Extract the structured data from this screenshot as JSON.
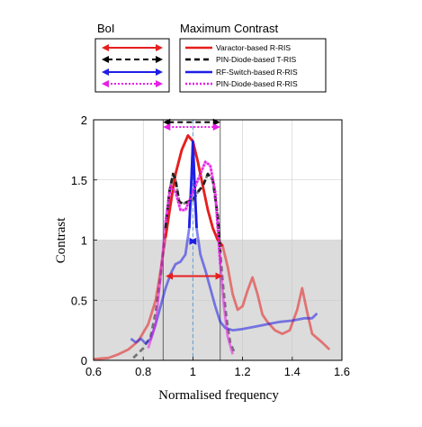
{
  "chart_data": {
    "type": "line",
    "xlabel": "Normalised frequency",
    "ylabel": "Contrast",
    "xlim": [
      0.6,
      1.6
    ],
    "ylim": [
      0,
      2
    ],
    "xticks": [
      "0.6",
      "0.8",
      "1",
      "1.2",
      "1.4",
      "1.6"
    ],
    "yticks": [
      "0",
      "0.5",
      "1",
      "1.5",
      "2"
    ],
    "grid": true,
    "shaded_region": {
      "y_from": 0,
      "y_to": 1,
      "color": "#dcdcdc"
    },
    "center_line": {
      "x": 1.0,
      "color": "#5b9bd5"
    },
    "series": [
      {
        "name": "Varactor-based R-RIS",
        "color": "#e61e1e",
        "points": [
          [
            0.6,
            0.01
          ],
          [
            0.66,
            0.02
          ],
          [
            0.7,
            0.05
          ],
          [
            0.74,
            0.09
          ],
          [
            0.78,
            0.16
          ],
          [
            0.82,
            0.3
          ],
          [
            0.85,
            0.5
          ],
          [
            0.87,
            0.75
          ],
          [
            0.89,
            1.02
          ],
          [
            0.91,
            1.3
          ],
          [
            0.93,
            1.55
          ],
          [
            0.955,
            1.75
          ],
          [
            0.98,
            1.87
          ],
          [
            1.0,
            1.82
          ],
          [
            1.02,
            1.65
          ],
          [
            1.04,
            1.45
          ],
          [
            1.06,
            1.25
          ],
          [
            1.08,
            1.1
          ],
          [
            1.1,
            1.0
          ],
          [
            1.12,
            0.95
          ],
          [
            1.14,
            0.78
          ],
          [
            1.16,
            0.55
          ],
          [
            1.18,
            0.42
          ],
          [
            1.2,
            0.45
          ],
          [
            1.22,
            0.58
          ],
          [
            1.24,
            0.69
          ],
          [
            1.26,
            0.55
          ],
          [
            1.28,
            0.38
          ],
          [
            1.3,
            0.32
          ],
          [
            1.33,
            0.25
          ],
          [
            1.36,
            0.22
          ],
          [
            1.39,
            0.25
          ],
          [
            1.42,
            0.42
          ],
          [
            1.44,
            0.6
          ],
          [
            1.46,
            0.4
          ],
          [
            1.48,
            0.22
          ],
          [
            1.52,
            0.15
          ],
          [
            1.55,
            0.09
          ]
        ],
        "highlight_range": [
          0.89,
          1.12
        ]
      },
      {
        "name": "PIN-Diode-based T-RIS",
        "color": "#222222",
        "points": [
          [
            0.76,
            0.02
          ],
          [
            0.8,
            0.1
          ],
          [
            0.83,
            0.2
          ],
          [
            0.85,
            0.4
          ],
          [
            0.87,
            0.7
          ],
          [
            0.89,
            1.1
          ],
          [
            0.905,
            1.4
          ],
          [
            0.92,
            1.55
          ],
          [
            0.93,
            1.5
          ],
          [
            0.945,
            1.32
          ],
          [
            0.96,
            1.3
          ],
          [
            0.98,
            1.32
          ],
          [
            1.0,
            1.33
          ],
          [
            1.02,
            1.4
          ],
          [
            1.04,
            1.45
          ],
          [
            1.06,
            1.55
          ],
          [
            1.08,
            1.5
          ],
          [
            1.1,
            1.2
          ],
          [
            1.11,
            0.9
          ],
          [
            1.12,
            0.65
          ],
          [
            1.135,
            0.35
          ],
          [
            1.15,
            0.15
          ],
          [
            1.17,
            0.05
          ]
        ],
        "highlight_range": [
          0.89,
          1.11
        ]
      },
      {
        "name": "RF-Switch-based R-RIS",
        "color": "#1e1ee6",
        "points": [
          [
            0.75,
            0.18
          ],
          [
            0.77,
            0.15
          ],
          [
            0.79,
            0.18
          ],
          [
            0.81,
            0.14
          ],
          [
            0.83,
            0.18
          ],
          [
            0.85,
            0.3
          ],
          [
            0.87,
            0.45
          ],
          [
            0.89,
            0.6
          ],
          [
            0.91,
            0.72
          ],
          [
            0.93,
            0.8
          ],
          [
            0.95,
            0.82
          ],
          [
            0.97,
            0.88
          ],
          [
            0.985,
            1.1
          ],
          [
            0.995,
            1.55
          ],
          [
            1.0,
            1.82
          ],
          [
            1.005,
            1.55
          ],
          [
            1.015,
            1.1
          ],
          [
            1.03,
            0.88
          ],
          [
            1.05,
            0.75
          ],
          [
            1.07,
            0.6
          ],
          [
            1.09,
            0.45
          ],
          [
            1.11,
            0.32
          ],
          [
            1.13,
            0.27
          ],
          [
            1.16,
            0.25
          ],
          [
            1.2,
            0.26
          ],
          [
            1.25,
            0.28
          ],
          [
            1.3,
            0.3
          ],
          [
            1.35,
            0.32
          ],
          [
            1.4,
            0.33
          ],
          [
            1.45,
            0.35
          ],
          [
            1.48,
            0.35
          ],
          [
            1.5,
            0.39
          ]
        ],
        "highlight_range": [
          0.985,
          1.015
        ]
      },
      {
        "name": "PIN-Diode-based R-RIS",
        "color": "#e61ee6",
        "points": [
          [
            0.82,
            0.1
          ],
          [
            0.85,
            0.3
          ],
          [
            0.87,
            0.7
          ],
          [
            0.89,
            1.15
          ],
          [
            0.91,
            1.45
          ],
          [
            0.93,
            1.4
          ],
          [
            0.95,
            1.25
          ],
          [
            0.97,
            1.25
          ],
          [
            0.99,
            1.35
          ],
          [
            1.01,
            1.45
          ],
          [
            1.03,
            1.55
          ],
          [
            1.05,
            1.65
          ],
          [
            1.07,
            1.62
          ],
          [
            1.09,
            1.4
          ],
          [
            1.1,
            1.1
          ],
          [
            1.11,
            0.8
          ],
          [
            1.125,
            0.45
          ],
          [
            1.14,
            0.2
          ],
          [
            1.16,
            0.05
          ]
        ],
        "highlight_range": [
          0.89,
          1.11
        ]
      }
    ],
    "bandwidth_arrows": [
      {
        "series": "Varactor-based R-RIS",
        "x1": 0.89,
        "x2": 1.12,
        "y": 0.7,
        "color": "#e61e1e",
        "dash": "solid"
      },
      {
        "series": "PIN-Diode-based T-RIS",
        "x1": 0.88,
        "x2": 1.11,
        "y": 1.98,
        "color": "#000000",
        "dash": "dashed"
      },
      {
        "series": "RF-Switch-based R-RIS",
        "x1": 0.985,
        "x2": 1.015,
        "y": 0.99,
        "color": "#1e1ee6",
        "dash": "solid"
      },
      {
        "series": "PIN-Diode-based R-RIS",
        "x1": 0.88,
        "x2": 1.11,
        "y": 1.94,
        "color": "#e61ee6",
        "dash": "dotted"
      }
    ]
  },
  "legend": {
    "bol_title": "BoI",
    "contrast_title": "Maximum Contrast",
    "entries": [
      {
        "label": "Varactor-based R-RIS",
        "color": "#e61e1e",
        "dash": "solid"
      },
      {
        "label": "PIN-Diode-based T-RIS",
        "color": "#000000",
        "dash": "dashed"
      },
      {
        "label": "RF-Switch-based R-RIS",
        "color": "#1e1ee6",
        "dash": "solid"
      },
      {
        "label": "PIN-Diode-based R-RIS",
        "color": "#e61ee6",
        "dash": "dotted"
      }
    ]
  }
}
